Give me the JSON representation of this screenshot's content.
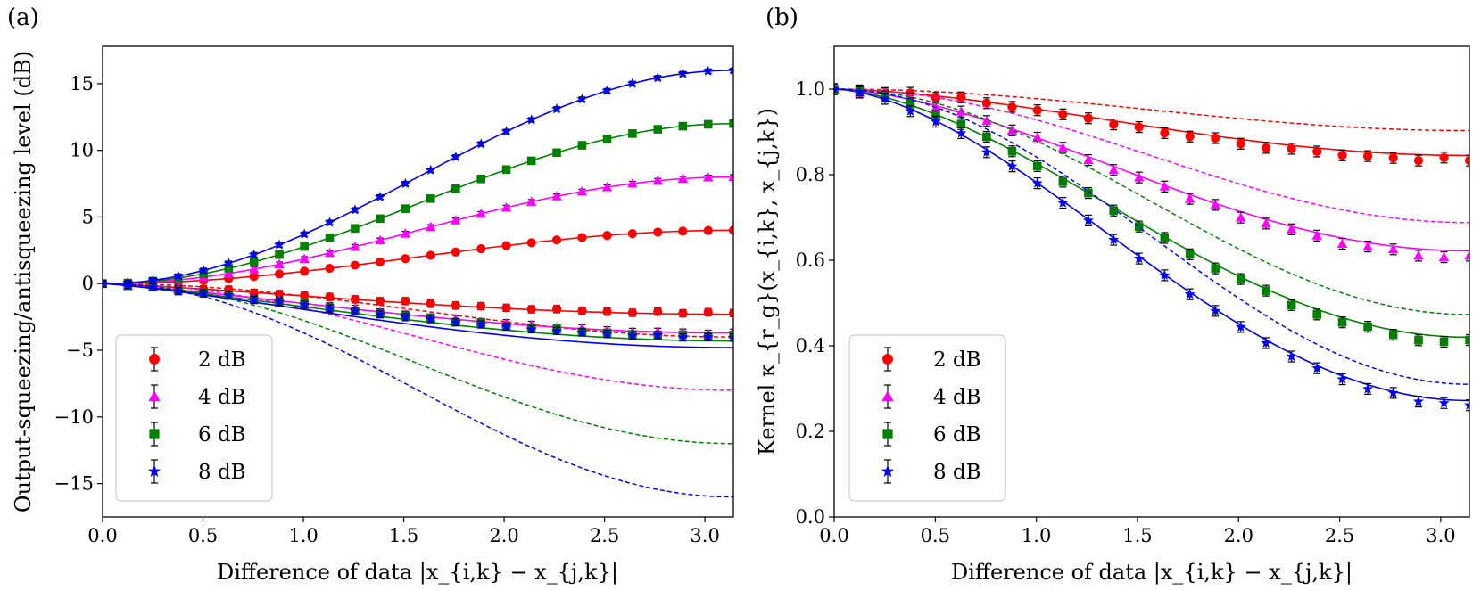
{
  "figure": {
    "panels": [
      {
        "label": "(a)",
        "xlabel": "Difference of data |x_{i,k} − x_{j,k}|",
        "ylabel": "Output-squeezing/antisqueezing level (dB)",
        "xlim": [
          0,
          3.1416
        ],
        "ylim": [
          -17.5,
          17.8
        ],
        "xticks": [
          "0.0",
          "0.5",
          "1.0",
          "1.5",
          "2.0",
          "2.5",
          "3.0"
        ],
        "yticks": [
          "−15",
          "−10",
          "−5",
          "0",
          "5",
          "10",
          "15"
        ],
        "legend": [
          "2 dB",
          "4 dB",
          "6 dB",
          "8 dB"
        ]
      },
      {
        "label": "(b)",
        "xlabel": "Difference of data |x_{i,k} − x_{j,k}|",
        "ylabel": "Kernel κ_{r_g}(x_{i,k}, x_{j,k})",
        "xlim": [
          0,
          3.1416
        ],
        "ylim": [
          0,
          1.1
        ],
        "xticks": [
          "0.0",
          "0.5",
          "1.0",
          "1.5",
          "2.0",
          "2.5",
          "3.0"
        ],
        "yticks": [
          "0.0",
          "0.2",
          "0.4",
          "0.6",
          "0.8",
          "1.0"
        ],
        "legend": [
          "2 dB",
          "4 dB",
          "6 dB",
          "8 dB"
        ]
      }
    ]
  },
  "chart_data": [
    {
      "type": "line",
      "title": "(a)",
      "xlabel": "Difference of data |x_{i,k} − x_{j,k}|",
      "ylabel": "Output-squeezing/antisqueezing level (dB)",
      "xlim": [
        0,
        3.1416
      ],
      "ylim": [
        -17.5,
        17.8
      ],
      "legend_position": "lower-left",
      "x_markers": [
        0,
        0.126,
        0.251,
        0.377,
        0.503,
        0.628,
        0.754,
        0.88,
        1.005,
        1.131,
        1.257,
        1.382,
        1.508,
        1.634,
        1.759,
        1.885,
        2.011,
        2.136,
        2.262,
        2.388,
        2.513,
        2.639,
        2.765,
        2.89,
        3.016,
        3.142
      ],
      "series": [
        {
          "name": "2 dB",
          "color": "#ff0000",
          "marker": "circle",
          "antisqueezing_end": 4.0,
          "squeezing_fit_end": -2.3,
          "squeezing_ideal_end": -4.0,
          "squeezing_measured_end": -2.2
        },
        {
          "name": "4 dB",
          "color": "#ff00ff",
          "marker": "triangle",
          "antisqueezing_end": 8.0,
          "squeezing_fit_end": -3.7,
          "squeezing_ideal_end": -8.0,
          "squeezing_measured_end": -3.7
        },
        {
          "name": "6 dB",
          "color": "#008000",
          "marker": "square",
          "antisqueezing_end": 12.0,
          "squeezing_fit_end": -4.3,
          "squeezing_ideal_end": -12.0,
          "squeezing_measured_end": -3.9
        },
        {
          "name": "8 dB",
          "color": "#0000ff",
          "marker": "star",
          "antisqueezing_end": 16.0,
          "squeezing_fit_end": -4.8,
          "squeezing_ideal_end": -16.0,
          "squeezing_measured_end": -4.0
        }
      ]
    },
    {
      "type": "line",
      "title": "(b)",
      "xlabel": "Difference of data |x_{i,k} − x_{j,k}|",
      "ylabel": "Kernel κ_{r_g}(x_{i,k}, x_{j,k})",
      "xlim": [
        0,
        3.1416
      ],
      "ylim": [
        0,
        1.1
      ],
      "legend_position": "lower-left",
      "x_markers": [
        0,
        0.126,
        0.251,
        0.377,
        0.503,
        0.628,
        0.754,
        0.88,
        1.005,
        1.131,
        1.257,
        1.382,
        1.508,
        1.634,
        1.759,
        1.885,
        2.011,
        2.136,
        2.262,
        2.388,
        2.513,
        2.639,
        2.765,
        2.89,
        3.016,
        3.142
      ],
      "series": [
        {
          "name": "2 dB",
          "color": "#ff0000",
          "marker": "circle",
          "fit_end": 0.845,
          "ideal_end": 0.903,
          "measured_end": 0.835
        },
        {
          "name": "4 dB",
          "color": "#ff00ff",
          "marker": "triangle",
          "fit_end": 0.622,
          "ideal_end": 0.688,
          "measured_end": 0.61
        },
        {
          "name": "6 dB",
          "color": "#008000",
          "marker": "square",
          "fit_end": 0.42,
          "ideal_end": 0.473,
          "measured_end": 0.41
        },
        {
          "name": "8 dB",
          "color": "#0000ff",
          "marker": "star",
          "fit_end": 0.272,
          "ideal_end": 0.31,
          "measured_end": 0.265
        }
      ]
    }
  ]
}
